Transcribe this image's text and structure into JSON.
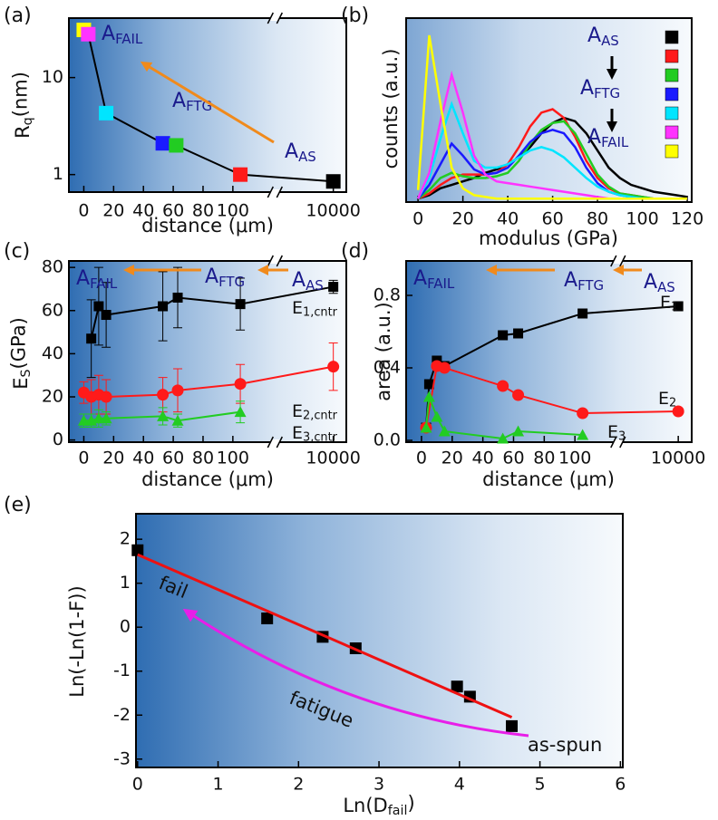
{
  "chart_data": [
    {
      "type": "line",
      "panel": "(a)",
      "xlabel": "distance (μm)",
      "ylabel": {
        "text": "R",
        "sub": "q",
        "after": "(nm)"
      },
      "xlim": [
        -10,
        10100
      ],
      "xbreak": [
        124,
        9600
      ],
      "xticks": [
        0,
        20,
        40,
        60,
        80,
        100,
        10000
      ],
      "ylim": [
        0.66,
        41
      ],
      "ylog": true,
      "yticks": [
        1,
        10
      ],
      "series": [
        {
          "color": "#000000",
          "marker": "square",
          "colors": [
            "#ffff00",
            "#ff33ff",
            "#00e5ff",
            "#1a1aff",
            "#22cc22",
            "#ff1a1a",
            "#000000"
          ],
          "x": [
            0,
            3,
            15,
            53,
            62,
            105,
            10000
          ],
          "values": [
            31,
            28,
            4.3,
            2.1,
            2.0,
            1.0,
            0.85
          ]
        }
      ],
      "annotations": [
        {
          "text": "A",
          "sub": "FAIL"
        },
        {
          "text": "A",
          "sub": "FTG"
        },
        {
          "text": "A",
          "sub": "AS"
        }
      ]
    },
    {
      "type": "line",
      "panel": "(b)",
      "xlabel": "modulus (GPa)",
      "ylabel": "counts (a.u.)",
      "xlim": [
        -5.3,
        122
      ],
      "xticks": [
        0,
        20,
        40,
        60,
        80,
        100,
        120
      ],
      "ylim": [
        -0.02,
        1.05
      ],
      "x": [
        0,
        5,
        10,
        15,
        20,
        25,
        30,
        35,
        40,
        45,
        50,
        55,
        60,
        65,
        70,
        75,
        80,
        85,
        90,
        95,
        100,
        105,
        110,
        115,
        120
      ],
      "series": [
        {
          "color": "#000000",
          "values": [
            0,
            0.02,
            0.06,
            0.08,
            0.1,
            0.12,
            0.15,
            0.17,
            0.2,
            0.24,
            0.3,
            0.38,
            0.44,
            0.47,
            0.45,
            0.38,
            0.28,
            0.18,
            0.12,
            0.08,
            0.06,
            0.04,
            0.03,
            0.02,
            0.01
          ]
        },
        {
          "color": "#ff1a1a",
          "values": [
            0,
            0.03,
            0.08,
            0.12,
            0.14,
            0.14,
            0.14,
            0.15,
            0.2,
            0.3,
            0.42,
            0.5,
            0.52,
            0.47,
            0.36,
            0.22,
            0.12,
            0.06,
            0.03,
            0.02,
            0.01,
            0,
            0,
            0,
            0
          ]
        },
        {
          "color": "#22cc22",
          "values": [
            0,
            0.05,
            0.12,
            0.15,
            0.13,
            0.12,
            0.12,
            0.13,
            0.15,
            0.22,
            0.32,
            0.4,
            0.44,
            0.45,
            0.38,
            0.26,
            0.14,
            0.07,
            0.03,
            0.02,
            0.01,
            0,
            0,
            0,
            0
          ]
        },
        {
          "color": "#1a1aff",
          "values": [
            0,
            0.08,
            0.2,
            0.32,
            0.25,
            0.17,
            0.14,
            0.15,
            0.18,
            0.25,
            0.33,
            0.38,
            0.4,
            0.38,
            0.3,
            0.18,
            0.09,
            0.04,
            0.02,
            0.01,
            0,
            0,
            0,
            0,
            0
          ]
        },
        {
          "color": "#00e5ff",
          "values": [
            0,
            0.12,
            0.35,
            0.55,
            0.38,
            0.22,
            0.18,
            0.18,
            0.2,
            0.24,
            0.28,
            0.3,
            0.28,
            0.24,
            0.18,
            0.12,
            0.07,
            0.04,
            0.02,
            0.01,
            0,
            0,
            0,
            0,
            0
          ]
        },
        {
          "color": "#ff33ff",
          "values": [
            0,
            0.15,
            0.45,
            0.72,
            0.5,
            0.25,
            0.14,
            0.1,
            0.09,
            0.08,
            0.07,
            0.06,
            0.05,
            0.04,
            0.03,
            0.02,
            0.01,
            0,
            0,
            0,
            0,
            0,
            0,
            0,
            0
          ]
        },
        {
          "color": "#ffff00",
          "values": [
            0.05,
            0.95,
            0.55,
            0.18,
            0.06,
            0.02,
            0.01,
            0,
            0,
            0,
            0,
            0,
            0,
            0,
            0,
            0,
            0,
            0,
            0,
            0,
            0,
            0,
            0,
            0,
            0
          ]
        }
      ],
      "annotations": [
        {
          "text": "A",
          "sub": "AS"
        },
        {
          "text": "A",
          "sub": "FTG"
        },
        {
          "text": "A",
          "sub": "FAIL"
        }
      ]
    },
    {
      "type": "line",
      "panel": "(c)",
      "xlabel": "distance (μm)",
      "ylabel": {
        "text": "E",
        "sub": "S",
        "after": "(GPa)"
      },
      "xlim": [
        -10,
        10100
      ],
      "xbreak": [
        124,
        9600
      ],
      "xticks": [
        0,
        20,
        40,
        60,
        80,
        100,
        10000
      ],
      "ylim": [
        -1,
        83
      ],
      "yticks": [
        0,
        20,
        40,
        60,
        80
      ],
      "series": [
        {
          "color": "#000000",
          "marker": "square",
          "label": {
            "text": "E",
            "sub": "1,cntr"
          },
          "x": [
            5,
            10,
            15,
            53,
            63,
            105,
            10000
          ],
          "values": [
            47,
            62,
            58,
            62,
            66,
            63,
            71
          ],
          "errors": [
            18,
            18,
            15,
            16,
            14,
            12,
            3
          ]
        },
        {
          "color": "#ff1a1a",
          "marker": "circle",
          "label": {
            "text": "E",
            "sub": "2,cntr"
          },
          "x": [
            0,
            5,
            10,
            15,
            53,
            63,
            105,
            10000
          ],
          "values": [
            22,
            20,
            21,
            20,
            21,
            23,
            26,
            34
          ],
          "errors": [
            5,
            8,
            9,
            8,
            8,
            10,
            9,
            11
          ]
        },
        {
          "color": "#22cc22",
          "marker": "triangle",
          "label": {
            "text": "E",
            "sub": "3,cntr"
          },
          "x": [
            0,
            5,
            10,
            15,
            53,
            63,
            105
          ],
          "values": [
            9,
            9,
            10,
            10,
            11,
            9,
            13
          ],
          "errors": [
            3,
            3,
            4,
            3,
            4,
            3,
            5
          ]
        }
      ],
      "annotations": [
        {
          "text": "A",
          "sub": "FAIL"
        },
        {
          "text": "A",
          "sub": "FTG"
        },
        {
          "text": "A",
          "sub": "AS"
        }
      ]
    },
    {
      "type": "line",
      "panel": "(d)",
      "xlabel": "distance (μm)",
      "ylabel": "area (a.u.)",
      "xlim": [
        -10,
        10100
      ],
      "xbreak": [
        124,
        9600
      ],
      "xticks": [
        0,
        20,
        40,
        60,
        80,
        100,
        10000
      ],
      "ylim": [
        -0.01,
        0.99
      ],
      "yticks": [
        {
          "value": 0,
          "label": "0.0"
        },
        0.4,
        0.8
      ],
      "series": [
        {
          "color": "#000000",
          "marker": "square",
          "label": {
            "text": "E",
            "sub": "1"
          },
          "x": [
            3,
            5,
            10,
            15,
            53,
            63,
            105,
            10000
          ],
          "values": [
            0.07,
            0.31,
            0.44,
            0.41,
            0.58,
            0.59,
            0.7,
            0.74
          ]
        },
        {
          "color": "#ff1a1a",
          "marker": "circle",
          "label": {
            "text": "E",
            "sub": "2"
          },
          "x": [
            3,
            10,
            15,
            53,
            63,
            105,
            10000
          ],
          "values": [
            0.07,
            0.41,
            0.4,
            0.3,
            0.25,
            0.15,
            0.16
          ]
        },
        {
          "color": "#22cc22",
          "marker": "triangle",
          "label": {
            "text": "E",
            "sub": "3"
          },
          "x": [
            3,
            5,
            10,
            15,
            53,
            63,
            105
          ],
          "values": [
            0.07,
            0.24,
            0.13,
            0.05,
            0.01,
            0.05,
            0.03
          ]
        }
      ],
      "annotations": [
        {
          "text": "A",
          "sub": "FAIL"
        },
        {
          "text": "A",
          "sub": "FTG"
        },
        {
          "text": "A",
          "sub": "AS"
        }
      ]
    },
    {
      "type": "scatter",
      "panel": "(e)",
      "xlabel": {
        "text": "Ln(D",
        "sub": "fail",
        "after": ")"
      },
      "ylabel": "Ln(-Ln(1-F))",
      "xlim": [
        -0.02,
        6.03
      ],
      "xticks": [
        0,
        1,
        2,
        3,
        4,
        5,
        6
      ],
      "ylim": [
        -3.19,
        2.58
      ],
      "yticks": [
        -3,
        -2,
        -1,
        0,
        1,
        2
      ],
      "series": [
        {
          "color": "#000000",
          "marker": "square",
          "x": [
            0,
            1.61,
            2.3,
            2.71,
            3.97,
            4.13,
            4.65
          ],
          "values": [
            1.75,
            0.2,
            -0.22,
            -0.48,
            -1.35,
            -1.58,
            -2.25
          ]
        },
        {
          "color": "#ee1111",
          "x": [
            0,
            4.65
          ],
          "values": [
            1.65,
            -2.05
          ]
        }
      ],
      "annotations": [
        {
          "text": "fail"
        },
        {
          "text": "fatigue"
        },
        {
          "text": "as-spun"
        }
      ]
    }
  ]
}
